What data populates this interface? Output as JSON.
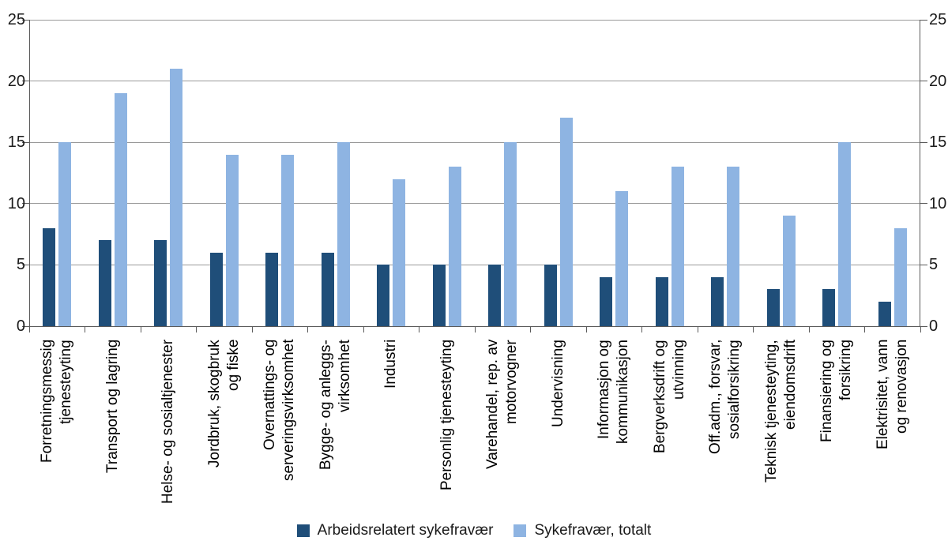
{
  "figure": {
    "background": "#ffffff"
  },
  "chart_data": {
    "type": "bar",
    "title": "",
    "xlabel": "",
    "ylabel": "",
    "categories": [
      "Forretningsmessig\ntjenesteyting",
      "Transport og lagring",
      "Helse- og sosialtjenester",
      "Jordbruk, skogbruk\nog fiske",
      "Overnattings- og\nserveringsvirksomhet",
      "Bygge- og anleggs-\nvirksomhet",
      "Industri",
      "Personlig tjenesteyting",
      "Varehandel, rep. av\nmotorvogner",
      "Undervisning",
      "Informasjon og\nkommunikasjon",
      "Bergverksdrift og\nutvinning",
      "Off.adm., forsvar,\nsosialforsikring",
      "Teknisk tjenesteyting,\neiendomsdrift",
      "Finansiering og\nforsikring",
      "Elektrisitet, vann\nog renovasjon"
    ],
    "series": [
      {
        "name": "Arbeidsrelatert sykefravær",
        "color": "#1F4E79",
        "values": [
          8,
          7,
          7,
          6,
          6,
          6,
          5,
          5,
          5,
          5,
          4,
          4,
          4,
          3,
          3,
          2
        ]
      },
      {
        "name": "Sykefravær, totalt",
        "color": "#8EB4E2",
        "values": [
          15,
          19,
          21,
          14,
          14,
          15,
          12,
          13,
          15,
          17,
          11,
          13,
          13,
          9,
          15,
          8
        ]
      }
    ],
    "ylim": [
      0,
      25
    ],
    "yticks": [
      0,
      5,
      10,
      15,
      20,
      25
    ],
    "y_axis_sides": [
      "left",
      "right"
    ],
    "grid": true,
    "legend_position": "bottom",
    "gridline_color": "#999999",
    "axis_color": "#5a5a5a",
    "text_color": "#1a1a1a"
  }
}
